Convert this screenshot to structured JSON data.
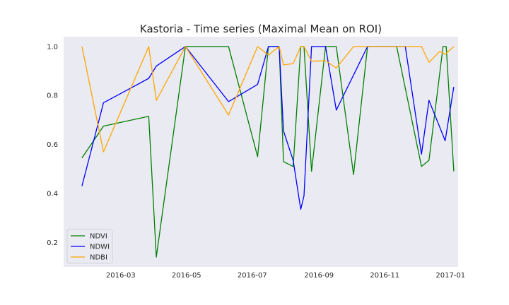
{
  "chart_data": {
    "type": "line",
    "title": "Kastoria - Time series (Maximal Mean on ROI)",
    "xlabel": "",
    "ylabel": "",
    "x_range": [
      "2016-01-08",
      "2017-01-08"
    ],
    "ylim": [
      0.1,
      1.04
    ],
    "x_ticks": [
      "2016-03",
      "2016-05",
      "2016-07",
      "2016-09",
      "2016-11",
      "2017-01"
    ],
    "y_ticks": [
      "0.2",
      "0.4",
      "0.6",
      "0.8",
      "1.0"
    ],
    "y_tick_values": [
      0.2,
      0.4,
      0.6,
      0.8,
      1.0
    ],
    "grid": false,
    "background": "#eaeaf2",
    "legend_position": "lower-left",
    "series": [
      {
        "name": "NDVI",
        "color": "#008000",
        "points": [
          [
            "2016-01-25",
            0.545
          ],
          [
            "2016-02-14",
            0.675
          ],
          [
            "2016-03-27",
            0.715
          ],
          [
            "2016-04-03",
            0.14
          ],
          [
            "2016-04-30",
            1.0
          ],
          [
            "2016-06-09",
            1.0
          ],
          [
            "2016-07-06",
            0.55
          ],
          [
            "2016-07-16",
            1.0
          ],
          [
            "2016-07-26",
            1.0
          ],
          [
            "2016-07-30",
            0.53
          ],
          [
            "2016-08-08",
            0.51
          ],
          [
            "2016-08-15",
            1.0
          ],
          [
            "2016-08-18",
            1.0
          ],
          [
            "2016-08-25",
            0.49
          ],
          [
            "2016-09-07",
            1.0
          ],
          [
            "2016-09-17",
            1.0
          ],
          [
            "2016-10-03",
            0.477
          ],
          [
            "2016-10-16",
            1.0
          ],
          [
            "2016-11-12",
            1.0
          ],
          [
            "2016-12-05",
            0.51
          ],
          [
            "2016-12-12",
            0.535
          ],
          [
            "2016-12-25",
            1.0
          ],
          [
            "2016-12-28",
            1.0
          ],
          [
            "2017-01-04",
            0.49
          ]
        ]
      },
      {
        "name": "NDWI",
        "color": "#0000ff",
        "points": [
          [
            "2016-01-25",
            0.43
          ],
          [
            "2016-02-14",
            0.77
          ],
          [
            "2016-03-27",
            0.87
          ],
          [
            "2016-04-03",
            0.92
          ],
          [
            "2016-04-30",
            1.0
          ],
          [
            "2016-06-09",
            0.775
          ],
          [
            "2016-07-06",
            0.845
          ],
          [
            "2016-07-16",
            1.0
          ],
          [
            "2016-07-26",
            1.0
          ],
          [
            "2016-07-30",
            0.655
          ],
          [
            "2016-08-08",
            0.535
          ],
          [
            "2016-08-15",
            0.335
          ],
          [
            "2016-08-18",
            0.39
          ],
          [
            "2016-08-25",
            1.0
          ],
          [
            "2016-09-07",
            1.0
          ],
          [
            "2016-09-17",
            0.74
          ],
          [
            "2016-10-16",
            1.0
          ],
          [
            "2016-11-12",
            1.0
          ],
          [
            "2016-11-20",
            1.0
          ],
          [
            "2016-12-05",
            0.56
          ],
          [
            "2016-12-12",
            0.78
          ],
          [
            "2016-12-22",
            0.67
          ],
          [
            "2016-12-27",
            0.615
          ],
          [
            "2017-01-04",
            0.835
          ]
        ]
      },
      {
        "name": "NDBI",
        "color": "#ffa500",
        "points": [
          [
            "2016-01-25",
            1.0
          ],
          [
            "2016-02-14",
            0.57
          ],
          [
            "2016-03-27",
            1.0
          ],
          [
            "2016-04-03",
            0.78
          ],
          [
            "2016-04-30",
            1.0
          ],
          [
            "2016-06-09",
            0.72
          ],
          [
            "2016-07-06",
            1.0
          ],
          [
            "2016-07-16",
            0.965
          ],
          [
            "2016-07-26",
            1.0
          ],
          [
            "2016-07-30",
            0.925
          ],
          [
            "2016-08-08",
            0.93
          ],
          [
            "2016-08-15",
            1.0
          ],
          [
            "2016-08-18",
            1.0
          ],
          [
            "2016-08-25",
            0.94
          ],
          [
            "2016-09-07",
            0.942
          ],
          [
            "2016-09-17",
            0.912
          ],
          [
            "2016-10-03",
            1.0
          ],
          [
            "2016-11-12",
            1.0
          ],
          [
            "2016-12-05",
            1.0
          ],
          [
            "2016-12-12",
            0.935
          ],
          [
            "2016-12-22",
            0.98
          ],
          [
            "2016-12-27",
            0.968
          ],
          [
            "2017-01-04",
            1.0
          ]
        ]
      }
    ]
  }
}
